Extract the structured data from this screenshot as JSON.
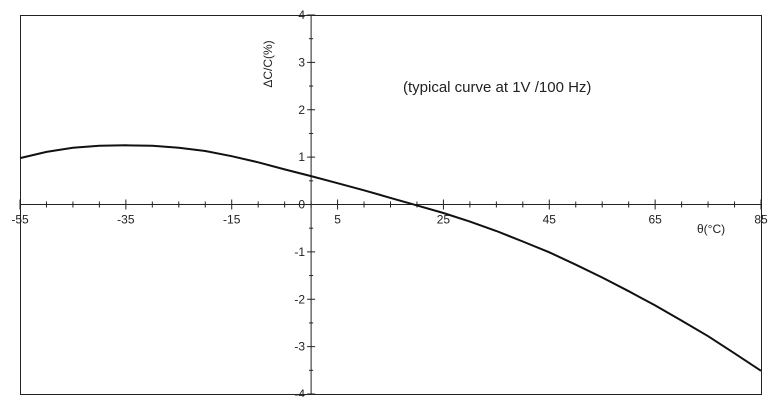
{
  "chart_data": {
    "type": "line",
    "title": "",
    "annotation": "(typical curve at 1V /100 Hz)",
    "xlabel": "θ(°C)",
    "ylabel": "ΔC/C(%)",
    "xlim": [
      -55,
      85
    ],
    "ylim": [
      -4,
      4
    ],
    "x_ticks": [
      -55,
      -35,
      -15,
      5,
      25,
      45,
      65,
      85
    ],
    "y_ticks": [
      -4,
      -3,
      -2,
      -1,
      0,
      1,
      2,
      3,
      4
    ],
    "grid": false,
    "series": [
      {
        "x": [
          -55,
          -50,
          -45,
          -40,
          -35,
          -30,
          -25,
          -20,
          -15,
          -10,
          -5,
          0,
          5,
          10,
          15,
          20,
          25,
          30,
          35,
          40,
          45,
          50,
          55,
          60,
          65,
          70,
          75,
          80,
          85
        ],
        "values": [
          0.98,
          1.11,
          1.2,
          1.24,
          1.25,
          1.24,
          1.2,
          1.13,
          1.02,
          0.89,
          0.74,
          0.6,
          0.45,
          0.3,
          0.14,
          -0.02,
          -0.18,
          -0.36,
          -0.56,
          -0.78,
          -1.01,
          -1.27,
          -1.54,
          -1.83,
          -2.13,
          -2.45,
          -2.78,
          -3.14,
          -3.51
        ]
      }
    ]
  }
}
